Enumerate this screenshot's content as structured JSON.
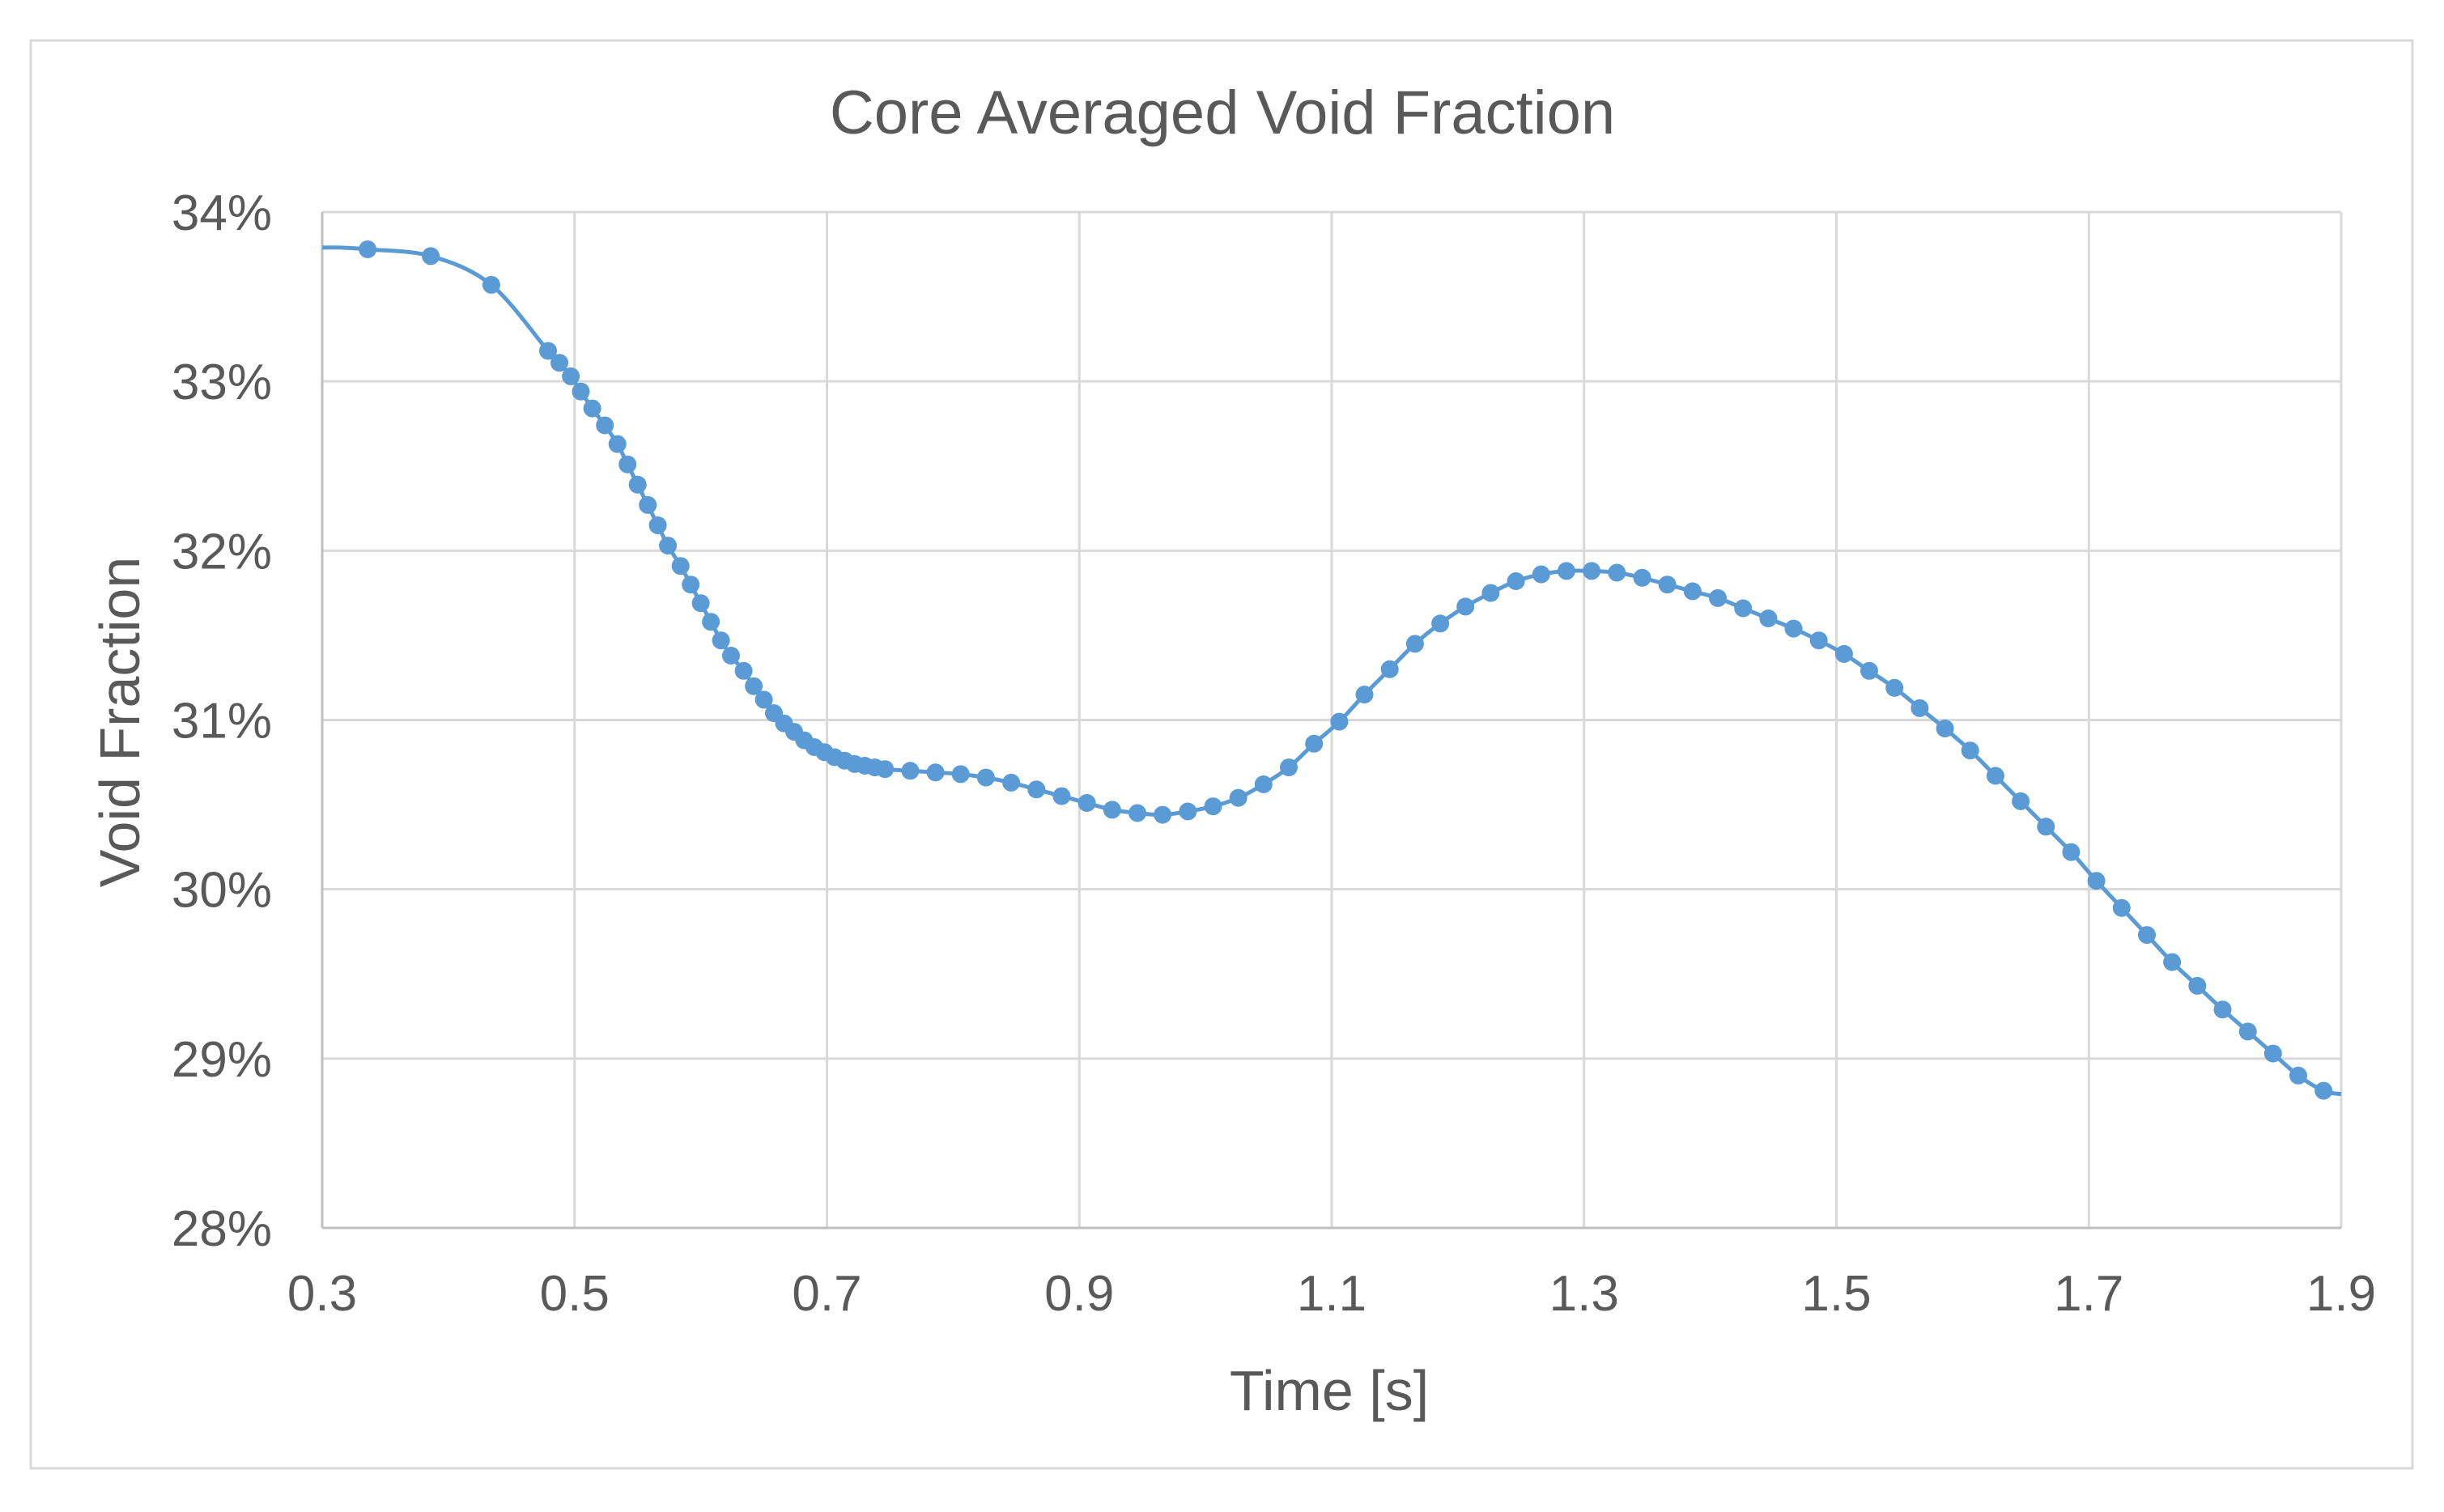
{
  "chart_data": {
    "type": "line",
    "title": "Core Averaged Void Fraction",
    "xlabel": "Time [s]",
    "ylabel": "Void Fraction",
    "xlim": [
      0.3,
      1.9
    ],
    "ylim": [
      0.28,
      0.34
    ],
    "x_ticks": [
      "0.3",
      "0.5",
      "0.7",
      "0.9",
      "1.1",
      "1.3",
      "1.5",
      "1.7",
      "1.9"
    ],
    "y_ticks": [
      "28%",
      "29%",
      "30%",
      "31%",
      "32%",
      "33%",
      "34%"
    ],
    "x_tick_values": [
      0.3,
      0.5,
      0.7,
      0.9,
      1.1,
      1.3,
      1.5,
      1.7,
      1.9
    ],
    "y_tick_values": [
      0.28,
      0.29,
      0.3,
      0.31,
      0.32,
      0.33,
      0.34
    ],
    "grid": true,
    "legend": "none",
    "colors": {
      "series": "#5B9BD5",
      "grid": "#D9D9D9",
      "text": "#595959",
      "border": "#D9D9D9"
    },
    "series": [
      {
        "x": [
          0.3,
          0.315,
          0.336,
          0.386,
          0.434,
          0.479,
          0.488,
          0.497,
          0.505,
          0.514,
          0.524,
          0.534,
          0.542,
          0.55,
          0.558,
          0.566,
          0.574,
          0.584,
          0.592,
          0.6,
          0.608,
          0.616,
          0.624,
          0.634,
          0.642,
          0.65,
          0.658,
          0.666,
          0.674,
          0.682,
          0.69,
          0.698,
          0.706,
          0.714,
          0.722,
          0.73,
          0.738,
          0.746,
          0.766,
          0.786,
          0.806,
          0.826,
          0.846,
          0.866,
          0.886,
          0.906,
          0.926,
          0.946,
          0.966,
          0.986,
          1.006,
          1.026,
          1.046,
          1.066,
          1.086,
          1.106,
          1.126,
          1.146,
          1.166,
          1.186,
          1.206,
          1.226,
          1.246,
          1.266,
          1.286,
          1.306,
          1.326,
          1.346,
          1.366,
          1.386,
          1.406,
          1.426,
          1.446,
          1.466,
          1.486,
          1.506,
          1.526,
          1.546,
          1.566,
          1.586,
          1.606,
          1.626,
          1.646,
          1.666,
          1.686,
          1.706,
          1.726,
          1.746,
          1.766,
          1.786,
          1.806,
          1.826,
          1.846,
          1.866,
          1.886,
          1.9
        ],
        "y": [
          0.3379,
          0.3379,
          0.3378,
          0.3374,
          0.3357,
          0.3318,
          0.3311,
          0.3303,
          0.3294,
          0.3284,
          0.3274,
          0.3263,
          0.3251,
          0.3239,
          0.3227,
          0.3215,
          0.3203,
          0.3191,
          0.318,
          0.3169,
          0.3158,
          0.3147,
          0.3138,
          0.3129,
          0.312,
          0.3112,
          0.3104,
          0.3098,
          0.3093,
          0.3088,
          0.3084,
          0.3081,
          0.3078,
          0.3076,
          0.3074,
          0.3073,
          0.3072,
          0.3071,
          0.307,
          0.3069,
          0.3068,
          0.3066,
          0.3063,
          0.3059,
          0.3055,
          0.3051,
          0.3047,
          0.3045,
          0.3044,
          0.3046,
          0.3049,
          0.3054,
          0.3062,
          0.3072,
          0.3086,
          0.3099,
          0.3115,
          0.313,
          0.3145,
          0.3157,
          0.3167,
          0.3175,
          0.3182,
          0.3186,
          0.3188,
          0.3188,
          0.3187,
          0.3184,
          0.318,
          0.3176,
          0.3172,
          0.3166,
          0.316,
          0.3154,
          0.3147,
          0.3139,
          0.3129,
          0.3119,
          0.3107,
          0.3095,
          0.3082,
          0.3067,
          0.3052,
          0.3037,
          0.3022,
          0.3005,
          0.2989,
          0.2973,
          0.2957,
          0.2943,
          0.2929,
          0.2916,
          0.2903,
          0.289,
          0.2881,
          0.2879
        ]
      }
    ]
  }
}
